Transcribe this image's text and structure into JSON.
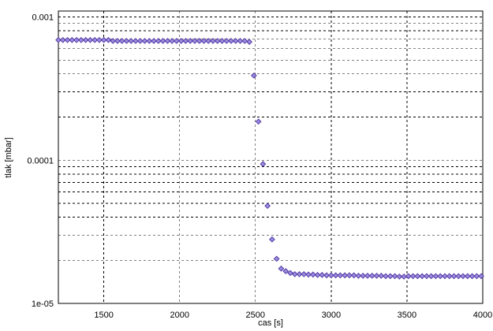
{
  "chart_data": {
    "type": "scatter",
    "title": "",
    "xlabel": "cas [s]",
    "ylabel": "tlak [mbar]",
    "xlim": [
      1200,
      4000
    ],
    "ylim": [
      1e-05,
      0.0011
    ],
    "y_scale": "log",
    "grid": true,
    "grid_style": "dashed",
    "legend": "none",
    "marker": "diamond",
    "colors": {
      "marker_fill": "#9b8de0",
      "marker_stroke": "#4a2f9d",
      "grid": "#000000",
      "axis": "#000000",
      "background": "#ffffff"
    },
    "x_ticks": [
      1500,
      2000,
      2500,
      3000,
      3500,
      4000
    ],
    "x_tick_labels": [
      "1500",
      "2000",
      "2500",
      "3000",
      "3500",
      "4000"
    ],
    "y_major_ticks": [
      1e-05,
      0.0001,
      0.001
    ],
    "y_major_tick_labels": [
      "1e-05",
      "0.0001",
      "0.001"
    ],
    "y_minor_ticks": [
      2e-05,
      3e-05,
      4e-05,
      5e-05,
      6e-05,
      7e-05,
      8e-05,
      9e-05,
      0.0002,
      0.0003,
      0.0004,
      0.0005,
      0.0006,
      0.0007,
      0.0008,
      0.0009
    ],
    "series": [
      {
        "x": [
          1200,
          1230,
          1260,
          1290,
          1320,
          1350,
          1380,
          1410,
          1440,
          1470,
          1500,
          1530,
          1560,
          1590,
          1620,
          1650,
          1680,
          1710,
          1740,
          1770,
          1800,
          1830,
          1860,
          1890,
          1920,
          1950,
          1980,
          2010,
          2040,
          2070,
          2100,
          2130,
          2160,
          2190,
          2220,
          2250,
          2280,
          2310,
          2340,
          2370,
          2400,
          2430,
          2460,
          2490,
          2520,
          2550,
          2580,
          2610,
          2640,
          2670,
          2700,
          2730,
          2760,
          2790,
          2820,
          2850,
          2880,
          2910,
          2940,
          2970,
          3000,
          3030,
          3060,
          3090,
          3120,
          3150,
          3180,
          3210,
          3240,
          3270,
          3300,
          3330,
          3360,
          3390,
          3420,
          3450,
          3480,
          3510,
          3540,
          3570,
          3600,
          3630,
          3660,
          3690,
          3720,
          3750,
          3780,
          3810,
          3840,
          3870,
          3900,
          3930,
          3960,
          3990
        ],
        "y": [
          0.00069,
          0.00069,
          0.00069,
          0.00069,
          0.00069,
          0.00069,
          0.00069,
          0.00069,
          0.00069,
          0.00069,
          0.00069,
          0.00069,
          0.00068,
          0.00068,
          0.00068,
          0.00068,
          0.00068,
          0.00068,
          0.00068,
          0.00068,
          0.00068,
          0.00068,
          0.00068,
          0.00068,
          0.00068,
          0.00068,
          0.00068,
          0.00068,
          0.00068,
          0.00068,
          0.00068,
          0.00068,
          0.00068,
          0.00068,
          0.00068,
          0.00068,
          0.00068,
          0.00068,
          0.00068,
          0.00068,
          0.00068,
          0.00068,
          0.00067,
          0.00039,
          0.000186,
          9.4e-05,
          4.8e-05,
          2.8e-05,
          2.05e-05,
          1.75e-05,
          1.68e-05,
          1.63e-05,
          1.6e-05,
          1.6e-05,
          1.6e-05,
          1.59e-05,
          1.59e-05,
          1.58e-05,
          1.58e-05,
          1.57e-05,
          1.57e-05,
          1.57e-05,
          1.57e-05,
          1.57e-05,
          1.57e-05,
          1.57e-05,
          1.56e-05,
          1.56e-05,
          1.56e-05,
          1.56e-05,
          1.56e-05,
          1.56e-05,
          1.55e-05,
          1.55e-05,
          1.55e-05,
          1.54e-05,
          1.54e-05,
          1.55e-05,
          1.55e-05,
          1.55e-05,
          1.55e-05,
          1.55e-05,
          1.55e-05,
          1.55e-05,
          1.55e-05,
          1.55e-05,
          1.55e-05,
          1.55e-05,
          1.55e-05,
          1.55e-05,
          1.55e-05,
          1.55e-05,
          1.55e-05,
          1.55e-05
        ]
      }
    ]
  }
}
